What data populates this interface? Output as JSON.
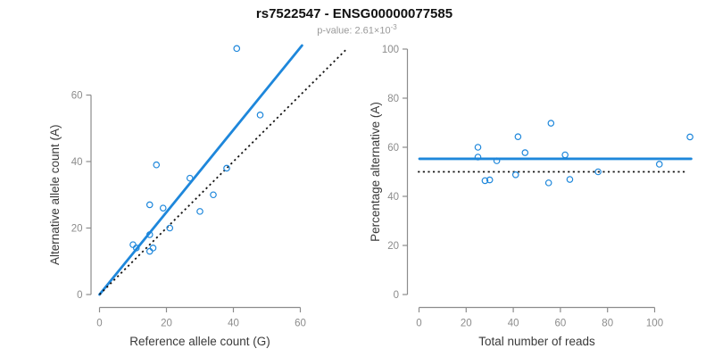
{
  "title": "rs7522547 - ENSG00000077585",
  "subtitle": {
    "prefix": "p-value: 2.61×10",
    "exponent": "-3"
  },
  "colors": {
    "accent_blue": "#1E87DB",
    "dotted_line": "#141414",
    "axis_line": "#8c8c8c",
    "tick_label": "#8c8c8c",
    "axis_title": "#3a3a3a",
    "title_text": "#111111",
    "subtitle_text": "#9a9a9a"
  },
  "chart_data": [
    {
      "type": "scatter",
      "name": "allele-count-panel",
      "xlabel": "Reference allele count (G)",
      "ylabel": "Alternative allele count (A)",
      "xlim": [
        0,
        60
      ],
      "ylim": [
        0,
        60
      ],
      "xticks": [
        0,
        20,
        40,
        60
      ],
      "yticks": [
        0,
        20,
        40,
        60
      ],
      "grid": false,
      "points": [
        [
          41,
          74
        ],
        [
          48,
          54
        ],
        [
          17,
          39
        ],
        [
          38,
          38
        ],
        [
          27,
          35
        ],
        [
          34,
          30
        ],
        [
          15,
          27
        ],
        [
          19,
          26
        ],
        [
          30,
          25
        ],
        [
          21,
          20
        ],
        [
          15,
          18
        ],
        [
          10,
          15
        ],
        [
          11,
          14
        ],
        [
          16,
          14
        ],
        [
          15,
          13
        ]
      ],
      "lines": [
        {
          "name": "fitted-proportion-line",
          "style": "solid",
          "color": "accent_blue",
          "from": [
            0,
            0
          ],
          "to": [
            60.5,
            74.9
          ]
        },
        {
          "name": "identity-line",
          "style": "dotted",
          "color": "dotted_line",
          "from": [
            0,
            0
          ],
          "to": [
            73.5,
            73.5
          ]
        }
      ]
    },
    {
      "type": "scatter",
      "name": "percentage-panel",
      "xlabel": "Total number of reads",
      "ylabel": "Percentage alternative (A)",
      "xlim": [
        0,
        100
      ],
      "ylim": [
        0,
        100
      ],
      "xticks": [
        0,
        20,
        40,
        60,
        80,
        100
      ],
      "yticks": [
        0,
        20,
        40,
        60,
        80,
        100
      ],
      "grid": false,
      "points": [
        [
          115,
          64.2
        ],
        [
          102,
          53.1
        ],
        [
          56,
          69.8
        ],
        [
          76,
          50.0
        ],
        [
          62,
          56.9
        ],
        [
          64,
          46.9
        ],
        [
          42,
          64.3
        ],
        [
          45,
          57.8
        ],
        [
          55,
          45.5
        ],
        [
          41,
          48.8
        ],
        [
          33,
          54.5
        ],
        [
          25,
          60.0
        ],
        [
          25,
          56.0
        ],
        [
          30,
          46.7
        ],
        [
          28,
          46.4
        ]
      ],
      "lines": [
        {
          "name": "mean-percentage-line",
          "style": "solid",
          "color": "accent_blue",
          "from": [
            0.2,
            55.3
          ],
          "to": [
            115.5,
            55.3
          ]
        },
        {
          "name": "expected-50-line",
          "style": "dotted",
          "color": "dotted_line",
          "from": [
            -0.5,
            50
          ],
          "to": [
            113,
            50
          ]
        }
      ]
    }
  ]
}
